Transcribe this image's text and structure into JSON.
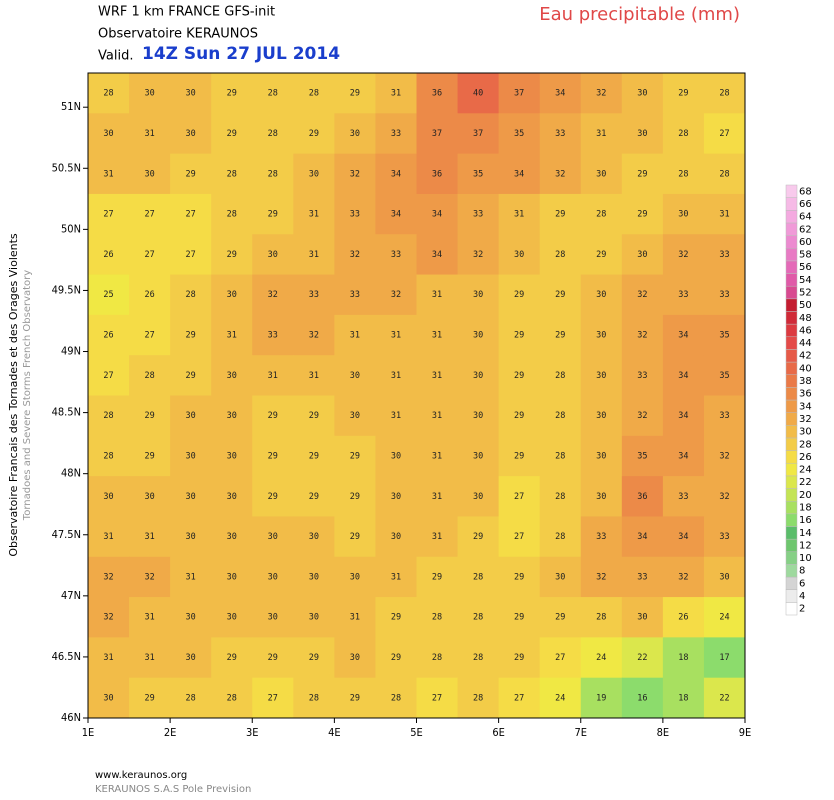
{
  "chart_data": {
    "type": "heatmap",
    "title": "Eau precipitable (mm)",
    "model": "WRF 1 km FRANCE  GFS-init",
    "source": "Observatoire KERAUNOS",
    "valid_label": "Valid.",
    "valid_time": "14Z Sun 27 JUL 2014",
    "side_text": [
      "Observatoire Francais des Tornades et des Orages Violents",
      "Tornadoes and Severe Storms French Observatory"
    ],
    "footer": [
      "www.keraunos.org",
      "KERAUNOS S.A.S Pole Prevision"
    ],
    "xlim": [
      1,
      9
    ],
    "ylim": [
      46,
      51.28
    ],
    "xticks": [
      {
        "value": 1,
        "label": "1E"
      },
      {
        "value": 2,
        "label": "2E"
      },
      {
        "value": 3,
        "label": "3E"
      },
      {
        "value": 4,
        "label": "4E"
      },
      {
        "value": 5,
        "label": "5E"
      },
      {
        "value": 6,
        "label": "6E"
      },
      {
        "value": 7,
        "label": "7E"
      },
      {
        "value": 8,
        "label": "8E"
      },
      {
        "value": 9,
        "label": "9E"
      }
    ],
    "yticks": [
      {
        "value": 46,
        "label": "46N"
      },
      {
        "value": 46.5,
        "label": "46.5N"
      },
      {
        "value": 47,
        "label": "47N"
      },
      {
        "value": 47.5,
        "label": "47.5N"
      },
      {
        "value": 48,
        "label": "48N"
      },
      {
        "value": 48.5,
        "label": "48.5N"
      },
      {
        "value": 49,
        "label": "49N"
      },
      {
        "value": 49.5,
        "label": "49.5N"
      },
      {
        "value": 50,
        "label": "50N"
      },
      {
        "value": 50.5,
        "label": "50.5N"
      },
      {
        "value": 51,
        "label": "51N"
      }
    ],
    "values": [
      [
        28,
        30,
        30,
        29,
        28,
        28,
        29,
        31,
        36,
        40,
        37,
        34,
        32,
        30,
        29,
        28
      ],
      [
        30,
        31,
        30,
        29,
        28,
        29,
        30,
        33,
        37,
        37,
        35,
        33,
        31,
        30,
        28,
        27
      ],
      [
        31,
        30,
        29,
        28,
        28,
        30,
        32,
        34,
        36,
        35,
        34,
        32,
        30,
        29,
        28,
        28
      ],
      [
        27,
        27,
        27,
        28,
        29,
        31,
        33,
        34,
        34,
        33,
        31,
        29,
        28,
        29,
        30,
        31
      ],
      [
        26,
        27,
        27,
        29,
        30,
        31,
        32,
        33,
        34,
        32,
        30,
        28,
        29,
        30,
        32,
        33
      ],
      [
        25,
        26,
        28,
        30,
        32,
        33,
        33,
        32,
        31,
        30,
        29,
        29,
        30,
        32,
        33,
        33
      ],
      [
        26,
        27,
        29,
        31,
        33,
        32,
        31,
        31,
        31,
        30,
        29,
        29,
        30,
        32,
        34,
        35
      ],
      [
        27,
        28,
        29,
        30,
        31,
        31,
        30,
        31,
        31,
        30,
        29,
        28,
        30,
        33,
        34,
        35
      ],
      [
        28,
        29,
        30,
        30,
        29,
        29,
        30,
        31,
        31,
        30,
        29,
        28,
        30,
        32,
        34,
        33
      ],
      [
        28,
        29,
        30,
        30,
        29,
        29,
        29,
        30,
        31,
        30,
        29,
        28,
        30,
        35,
        34,
        32
      ],
      [
        30,
        30,
        30,
        30,
        29,
        29,
        29,
        30,
        31,
        30,
        27,
        28,
        30,
        36,
        33,
        32
      ],
      [
        31,
        31,
        30,
        30,
        30,
        30,
        29,
        30,
        31,
        29,
        27,
        28,
        33,
        34,
        34,
        33
      ],
      [
        32,
        32,
        31,
        30,
        30,
        30,
        30,
        31,
        29,
        28,
        29,
        30,
        32,
        33,
        32,
        30
      ],
      [
        32,
        31,
        30,
        30,
        30,
        30,
        31,
        29,
        28,
        28,
        29,
        29,
        28,
        30,
        26,
        24
      ],
      [
        31,
        31,
        30,
        29,
        29,
        29,
        30,
        29,
        28,
        28,
        29,
        27,
        24,
        22,
        18,
        17
      ],
      [
        30,
        29,
        28,
        28,
        27,
        28,
        29,
        28,
        27,
        28,
        27,
        24,
        19,
        16,
        18,
        22
      ]
    ],
    "colorbar": {
      "levels": [
        2,
        4,
        6,
        8,
        10,
        12,
        14,
        16,
        18,
        20,
        22,
        24,
        26,
        28,
        30,
        32,
        34,
        36,
        38,
        40,
        42,
        44,
        46,
        48,
        50,
        52,
        54,
        56,
        58,
        60,
        62,
        64,
        66,
        68
      ],
      "colors": [
        "#ffffff",
        "#ececec",
        "#d4d4d4",
        "#9ed99e",
        "#86d086",
        "#6ec66e",
        "#5abd6a",
        "#8cdc6c",
        "#a8e060",
        "#c4e455",
        "#dbe74c",
        "#f0e844",
        "#f5dc46",
        "#f3cc48",
        "#f2bc48",
        "#f0aa48",
        "#ee9a48",
        "#ec8a48",
        "#ea7a48",
        "#e86a48",
        "#e65a48",
        "#e44a48",
        "#dc3a40",
        "#d02a38",
        "#c41c30",
        "#d84a90",
        "#e05aa8",
        "#e46ab8",
        "#e87ac4",
        "#ec8ad0",
        "#f09ad8",
        "#f4aae0",
        "#f6bae6",
        "#f8caec"
      ]
    }
  }
}
